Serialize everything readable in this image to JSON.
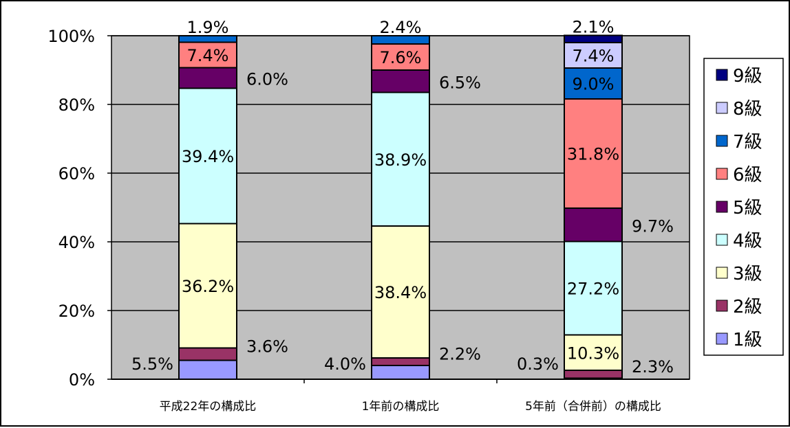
{
  "chart_data": {
    "type": "bar",
    "stacked": true,
    "ylim": [
      0,
      100
    ],
    "yticks": [
      "0%",
      "20%",
      "40%",
      "60%",
      "80%",
      "100%"
    ],
    "grid": true,
    "legend_position": "right",
    "categories": [
      "平成22年の構成比",
      "1年前の構成比",
      "5年前（合併前）の構成比"
    ],
    "series": [
      {
        "name": "1級",
        "color": "#9999ff",
        "values": [
          5.5,
          4.0,
          0.3
        ],
        "labels": [
          "5.5%",
          "4.0%",
          "0.3%"
        ]
      },
      {
        "name": "2級",
        "color": "#993366",
        "values": [
          3.6,
          2.2,
          2.3
        ],
        "labels": [
          "3.6%",
          "2.2%",
          "2.3%"
        ]
      },
      {
        "name": "3級",
        "color": "#ffffcc",
        "values": [
          36.2,
          38.4,
          10.3
        ],
        "labels": [
          "36.2%",
          "38.4%",
          "10.3%"
        ]
      },
      {
        "name": "4級",
        "color": "#ccffff",
        "values": [
          39.4,
          38.9,
          27.2
        ],
        "labels": [
          "39.4%",
          "38.9%",
          "27.2%"
        ]
      },
      {
        "name": "5級",
        "color": "#660066",
        "values": [
          6.0,
          6.5,
          9.7
        ],
        "labels": [
          "6.0%",
          "6.5%",
          "9.7%"
        ]
      },
      {
        "name": "6級",
        "color": "#ff8080",
        "values": [
          7.4,
          7.6,
          31.8
        ],
        "labels": [
          "7.4%",
          "7.6%",
          "31.8%"
        ]
      },
      {
        "name": "7級",
        "color": "#0066cc",
        "values": [
          1.9,
          2.4,
          9.0
        ],
        "labels": [
          "1.9%",
          "2.4%",
          "9.0%"
        ]
      },
      {
        "name": "8級",
        "color": "#ccccff",
        "values": [
          0,
          0,
          7.4
        ],
        "labels": [
          "",
          "",
          "7.4%"
        ]
      },
      {
        "name": "9級",
        "color": "#000080",
        "values": [
          0,
          0,
          2.1
        ],
        "labels": [
          "",
          "",
          "2.1%"
        ]
      }
    ],
    "colors": {
      "plot_background": "#c0c0c0",
      "gridline": "#000000"
    }
  }
}
